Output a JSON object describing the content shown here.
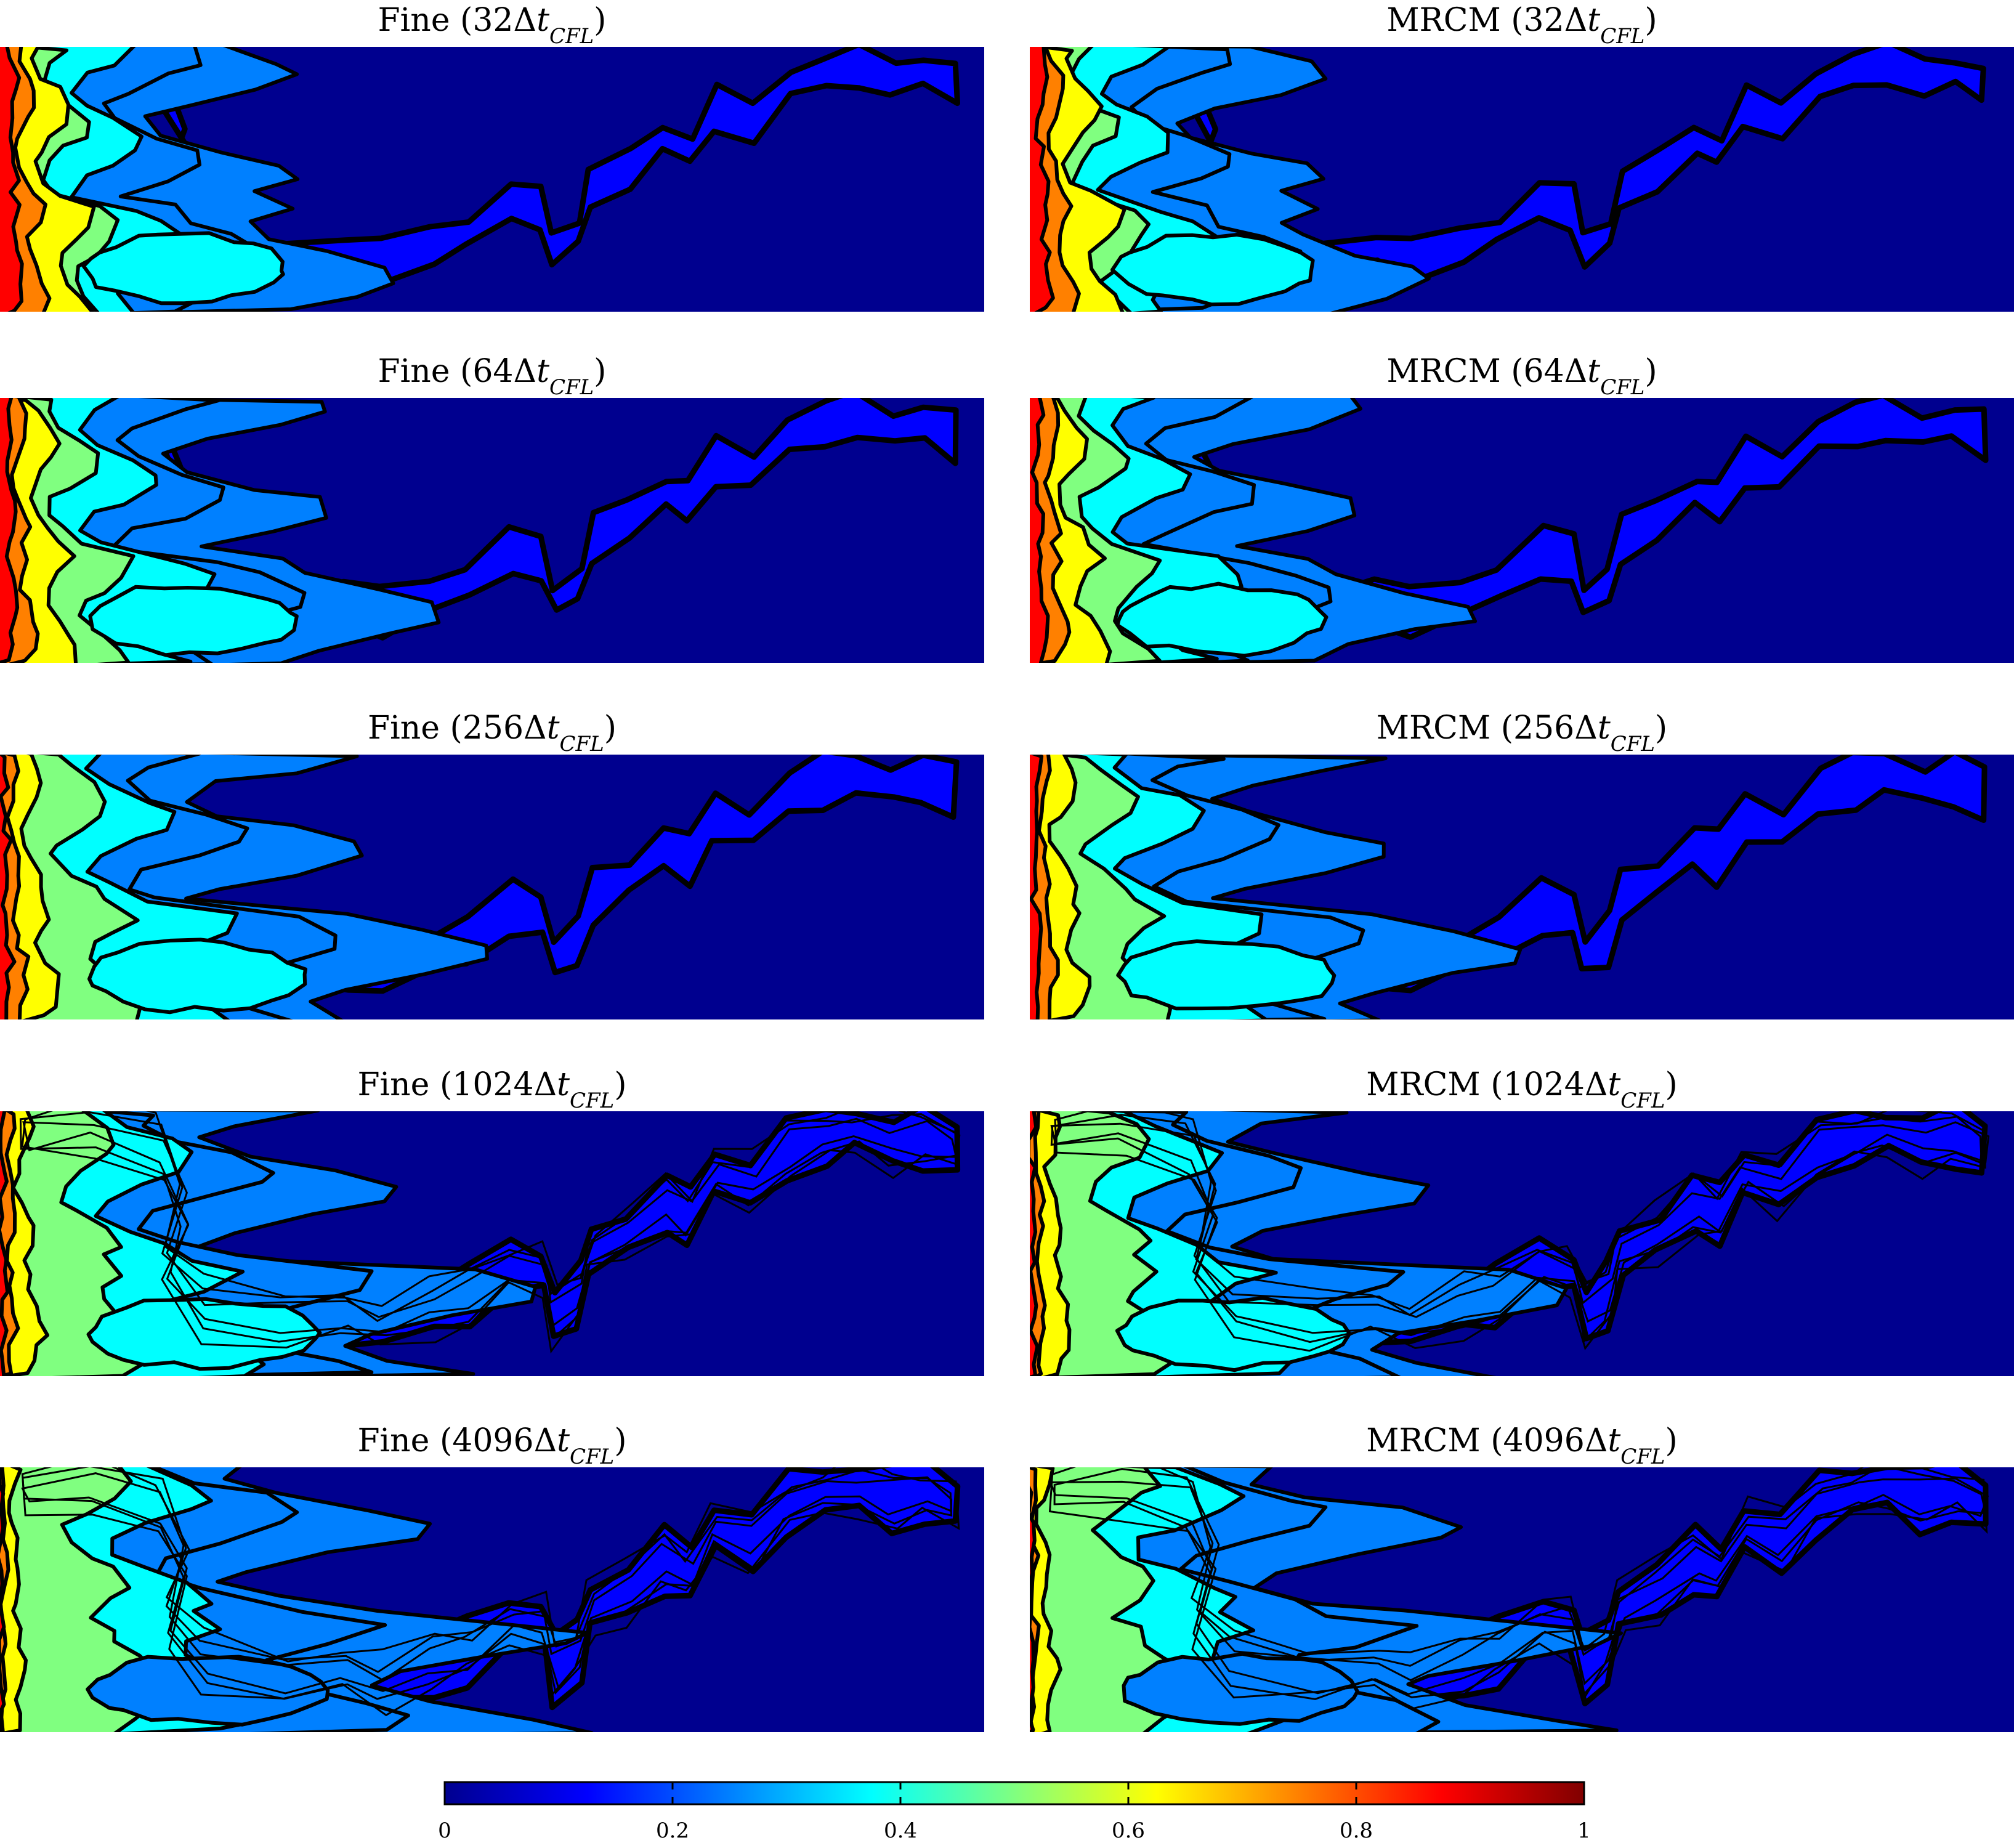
{
  "colors": {
    "jet": [
      "#00008f",
      "#0000ff",
      "#0080ff",
      "#00ffff",
      "#80ff80",
      "#ffff00",
      "#ff8000",
      "#ff0000",
      "#800000"
    ],
    "contour_line": "#000000",
    "background": "#ffffff"
  },
  "chart_data": {
    "type": "heatmap",
    "description_of_layout": "5 rows x 2 columns of filled contour maps",
    "columns": [
      "Fine",
      "MRCM"
    ],
    "rows": [
      "32",
      "64",
      "256",
      "1024",
      "4096"
    ],
    "time_unit": "Δt_CFL",
    "panels": [
      {
        "row": 0,
        "col": 0,
        "method": "Fine",
        "multiplier": "32",
        "title_prefix": "Fine (32Δ",
        "title_var": "t",
        "title_sub": "CFL",
        "title_suffix": ")"
      },
      {
        "row": 0,
        "col": 1,
        "method": "MRCM",
        "multiplier": "32",
        "title_prefix": "MRCM (32Δ",
        "title_var": "t",
        "title_sub": "CFL",
        "title_suffix": ")"
      },
      {
        "row": 1,
        "col": 0,
        "method": "Fine",
        "multiplier": "64",
        "title_prefix": "Fine (64Δ",
        "title_var": "t",
        "title_sub": "CFL",
        "title_suffix": ")"
      },
      {
        "row": 1,
        "col": 1,
        "method": "MRCM",
        "multiplier": "64",
        "title_prefix": "MRCM (64Δ",
        "title_var": "t",
        "title_sub": "CFL",
        "title_suffix": ")"
      },
      {
        "row": 2,
        "col": 0,
        "method": "Fine",
        "multiplier": "256",
        "title_prefix": "Fine (256Δ",
        "title_var": "t",
        "title_sub": "CFL",
        "title_suffix": ")"
      },
      {
        "row": 2,
        "col": 1,
        "method": "MRCM",
        "multiplier": "256",
        "title_prefix": "MRCM (256Δ",
        "title_var": "t",
        "title_sub": "CFL",
        "title_suffix": ")"
      },
      {
        "row": 3,
        "col": 0,
        "method": "Fine",
        "multiplier": "1024",
        "title_prefix": "Fine (1024Δ",
        "title_var": "t",
        "title_sub": "CFL",
        "title_suffix": ")"
      },
      {
        "row": 3,
        "col": 1,
        "method": "MRCM",
        "multiplier": "1024",
        "title_prefix": "MRCM (1024Δ",
        "title_var": "t",
        "title_sub": "CFL",
        "title_suffix": ")"
      },
      {
        "row": 4,
        "col": 0,
        "method": "Fine",
        "multiplier": "4096",
        "title_prefix": "Fine (4096Δ",
        "title_var": "t",
        "title_sub": "CFL",
        "title_suffix": ")"
      },
      {
        "row": 4,
        "col": 1,
        "method": "MRCM",
        "multiplier": "4096",
        "title_prefix": "MRCM (4096Δ",
        "title_var": "t",
        "title_sub": "CFL",
        "title_suffix": ")"
      }
    ],
    "colorbar": {
      "range": [
        0,
        1
      ],
      "colormap": "jet",
      "ticks": [
        0,
        0.2,
        0.4,
        0.6,
        0.8,
        1
      ],
      "tick_labels": [
        "0",
        "0.2",
        "0.4",
        "0.6",
        "0.8",
        "1"
      ],
      "orientation": "horizontal",
      "placement": "bottom"
    },
    "contour_levels": [
      0.1,
      0.2,
      0.3,
      0.4,
      0.5,
      0.6,
      0.7,
      0.8,
      0.9
    ],
    "grid": false,
    "axes_visible": false
  }
}
